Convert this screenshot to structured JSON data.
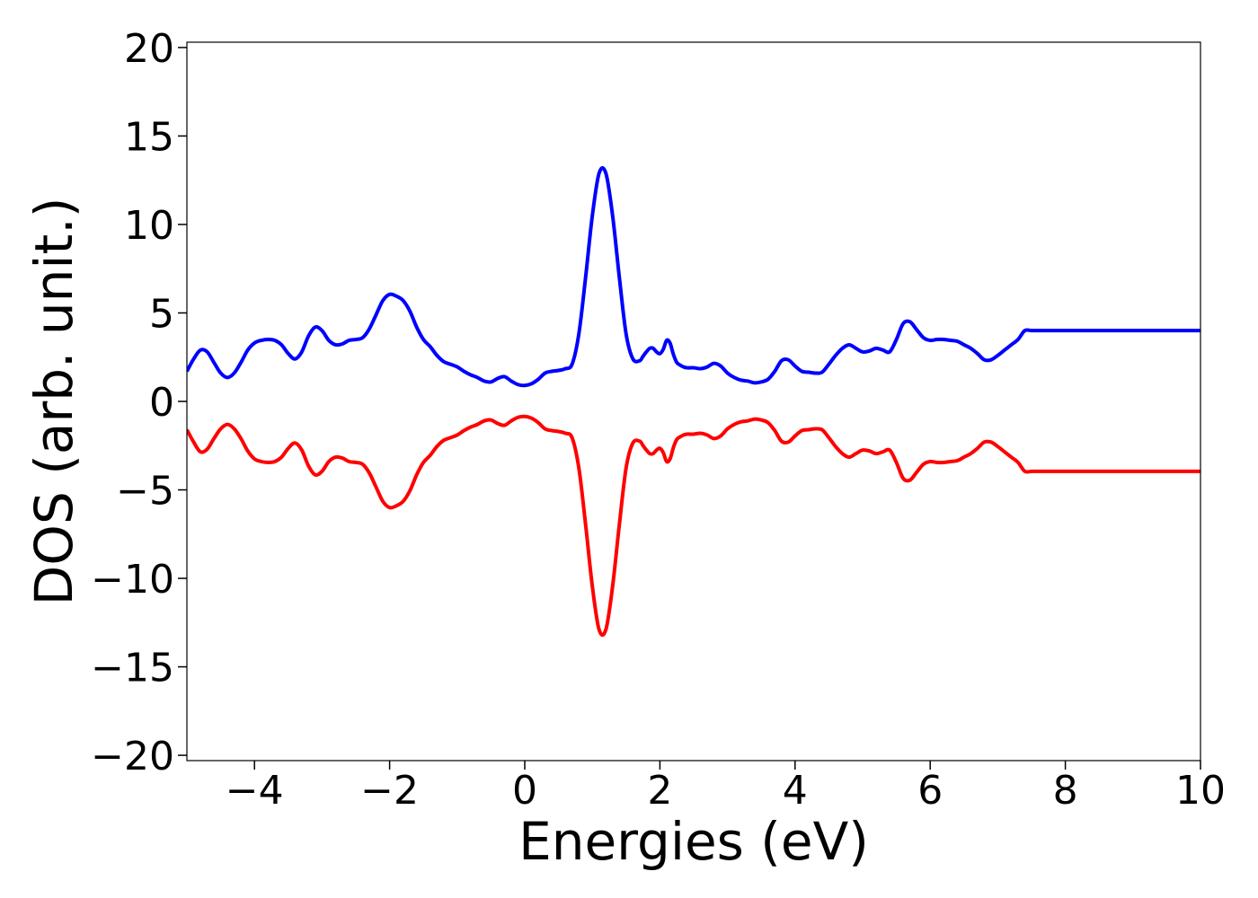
{
  "chart_data": {
    "type": "line",
    "title": "",
    "xlabel": "Energies (eV)",
    "ylabel": "DOS (arb. unit.)",
    "xlim": [
      -5,
      10
    ],
    "ylim": [
      -20.3,
      20.3
    ],
    "xticks": [
      -4,
      -2,
      0,
      2,
      4,
      6,
      8,
      10
    ],
    "xtick_labels": [
      "−4",
      "−2",
      "0",
      "2",
      "4",
      "6",
      "8",
      "10"
    ],
    "yticks": [
      20,
      15,
      10,
      5,
      0,
      -5,
      -10,
      -15,
      -20
    ],
    "ytick_labels": [
      "20",
      "15",
      "10",
      "5",
      "0",
      "−5",
      "−10",
      "−15",
      "−20"
    ],
    "grid": false,
    "legend": "none",
    "series": [
      {
        "color": "#0000ff",
        "x": [
          -5.0,
          -4.9,
          -4.8,
          -4.7,
          -4.6,
          -4.5,
          -4.4,
          -4.3,
          -4.2,
          -4.1,
          -4.0,
          -3.9,
          -3.8,
          -3.7,
          -3.6,
          -3.5,
          -3.4,
          -3.3,
          -3.2,
          -3.1,
          -3.0,
          -2.9,
          -2.8,
          -2.7,
          -2.6,
          -2.5,
          -2.4,
          -2.3,
          -2.2,
          -2.1,
          -2.0,
          -1.9,
          -1.8,
          -1.7,
          -1.6,
          -1.5,
          -1.4,
          -1.3,
          -1.2,
          -1.1,
          -1.0,
          -0.9,
          -0.8,
          -0.7,
          -0.6,
          -0.5,
          -0.4,
          -0.3,
          -0.2,
          -0.1,
          0.0,
          0.1,
          0.2,
          0.3,
          0.4,
          0.5,
          0.6,
          0.7,
          0.8,
          0.9,
          1.0,
          1.1,
          1.2,
          1.3,
          1.4,
          1.5,
          1.6,
          1.7,
          1.75,
          1.8,
          1.85,
          1.9,
          1.95,
          2.0,
          2.05,
          2.1,
          2.15,
          2.2,
          2.25,
          2.3,
          2.35,
          2.4,
          2.5,
          2.6,
          2.7,
          2.8,
          2.9,
          3.0,
          3.1,
          3.2,
          3.3,
          3.4,
          3.5,
          3.6,
          3.7,
          3.8,
          3.9,
          4.0,
          4.1,
          4.2,
          4.3,
          4.4,
          4.5,
          4.6,
          4.7,
          4.8,
          4.9,
          5.0,
          5.1,
          5.2,
          5.3,
          5.4,
          5.5,
          5.6,
          5.7,
          5.8,
          5.9,
          6.0,
          6.1,
          6.2,
          6.3,
          6.4,
          6.5,
          6.6,
          6.7,
          6.8,
          6.9,
          7.0,
          7.1,
          7.2,
          7.3,
          7.4,
          7.5,
          7.6,
          7.7,
          7.8,
          7.9,
          8.0,
          8.1,
          8.2,
          8.3,
          8.4,
          8.5,
          8.6,
          8.7,
          8.8,
          8.9,
          9.0,
          9.1,
          9.2,
          9.3,
          9.4,
          9.5,
          9.6,
          9.7,
          9.8,
          9.9,
          10.0
        ],
        "y": [
          1.7,
          2.4,
          2.9,
          2.8,
          2.2,
          1.6,
          1.35,
          1.6,
          2.2,
          2.9,
          3.3,
          3.45,
          3.5,
          3.45,
          3.2,
          2.7,
          2.4,
          2.8,
          3.7,
          4.2,
          4.0,
          3.45,
          3.2,
          3.25,
          3.45,
          3.5,
          3.6,
          4.1,
          4.9,
          5.7,
          6.05,
          5.95,
          5.7,
          5.1,
          4.2,
          3.5,
          3.1,
          2.6,
          2.25,
          2.1,
          1.95,
          1.7,
          1.5,
          1.35,
          1.15,
          1.1,
          1.3,
          1.4,
          1.15,
          0.95,
          0.9,
          1.0,
          1.25,
          1.6,
          1.7,
          1.75,
          1.85,
          2.1,
          3.8,
          7.0,
          10.5,
          12.9,
          12.9,
          10.5,
          7.0,
          3.8,
          2.4,
          2.3,
          2.55,
          2.8,
          3.0,
          3.0,
          2.8,
          2.7,
          2.95,
          3.45,
          3.3,
          2.65,
          2.2,
          2.05,
          1.95,
          1.9,
          1.9,
          1.85,
          1.95,
          2.15,
          2.0,
          1.6,
          1.35,
          1.2,
          1.15,
          1.05,
          1.1,
          1.25,
          1.7,
          2.3,
          2.35,
          2.0,
          1.7,
          1.65,
          1.6,
          1.65,
          2.1,
          2.6,
          3.0,
          3.2,
          3.0,
          2.8,
          2.85,
          3.0,
          2.9,
          2.8,
          3.5,
          4.4,
          4.5,
          4.05,
          3.6,
          3.45,
          3.5,
          3.5,
          3.45,
          3.4,
          3.2,
          3.0,
          2.7,
          2.35,
          2.35,
          2.6,
          2.9,
          3.2,
          3.5,
          4.0,
          4.0,
          4.0,
          4.0,
          4.0,
          4.0,
          4.0,
          4.0,
          4.0,
          4.0,
          4.0,
          4.0,
          4.0,
          4.0,
          4.0,
          4.0,
          4.0,
          4.0,
          4.0,
          4.0,
          4.0,
          4.0,
          4.0,
          4.0,
          4.0,
          4.0,
          4.0
        ]
      },
      {
        "color": "#ff0000",
        "x": [
          -5.0,
          -4.9,
          -4.8,
          -4.7,
          -4.6,
          -4.5,
          -4.4,
          -4.3,
          -4.2,
          -4.1,
          -4.0,
          -3.9,
          -3.8,
          -3.7,
          -3.6,
          -3.5,
          -3.4,
          -3.3,
          -3.2,
          -3.1,
          -3.0,
          -2.9,
          -2.8,
          -2.7,
          -2.6,
          -2.5,
          -2.4,
          -2.3,
          -2.2,
          -2.1,
          -2.0,
          -1.9,
          -1.8,
          -1.7,
          -1.6,
          -1.5,
          -1.4,
          -1.3,
          -1.2,
          -1.1,
          -1.0,
          -0.9,
          -0.8,
          -0.7,
          -0.6,
          -0.5,
          -0.4,
          -0.3,
          -0.2,
          -0.1,
          0.0,
          0.1,
          0.2,
          0.3,
          0.4,
          0.5,
          0.6,
          0.7,
          0.8,
          0.9,
          1.0,
          1.1,
          1.2,
          1.3,
          1.4,
          1.5,
          1.6,
          1.7,
          1.75,
          1.8,
          1.85,
          1.9,
          1.95,
          2.0,
          2.05,
          2.1,
          2.15,
          2.2,
          2.25,
          2.3,
          2.35,
          2.4,
          2.5,
          2.6,
          2.7,
          2.8,
          2.9,
          3.0,
          3.1,
          3.2,
          3.3,
          3.4,
          3.5,
          3.6,
          3.7,
          3.8,
          3.9,
          4.0,
          4.1,
          4.2,
          4.3,
          4.4,
          4.5,
          4.6,
          4.7,
          4.8,
          4.9,
          5.0,
          5.1,
          5.2,
          5.3,
          5.4,
          5.5,
          5.6,
          5.7,
          5.8,
          5.9,
          6.0,
          6.1,
          6.2,
          6.3,
          6.4,
          6.5,
          6.6,
          6.7,
          6.8,
          6.9,
          7.0,
          7.1,
          7.2,
          7.3,
          7.4,
          7.5,
          7.6,
          7.7,
          7.8,
          7.9,
          8.0,
          8.1,
          8.2,
          8.3,
          8.4,
          8.5,
          8.6,
          8.7,
          8.8,
          8.9,
          9.0,
          9.1,
          9.2,
          9.3,
          9.4,
          9.5,
          9.6,
          9.7,
          9.8,
          9.9,
          10.0
        ],
        "y": [
          -1.6,
          -2.3,
          -2.85,
          -2.7,
          -2.1,
          -1.55,
          -1.3,
          -1.55,
          -2.1,
          -2.8,
          -3.25,
          -3.4,
          -3.45,
          -3.4,
          -3.15,
          -2.65,
          -2.35,
          -2.75,
          -3.65,
          -4.15,
          -3.95,
          -3.4,
          -3.15,
          -3.2,
          -3.4,
          -3.45,
          -3.55,
          -4.05,
          -4.85,
          -5.65,
          -6.0,
          -5.9,
          -5.65,
          -5.05,
          -4.15,
          -3.45,
          -3.05,
          -2.55,
          -2.2,
          -2.05,
          -1.9,
          -1.65,
          -1.45,
          -1.3,
          -1.1,
          -1.05,
          -1.25,
          -1.35,
          -1.1,
          -0.9,
          -0.85,
          -0.95,
          -1.2,
          -1.55,
          -1.65,
          -1.7,
          -1.8,
          -2.05,
          -3.75,
          -6.95,
          -10.45,
          -12.9,
          -12.9,
          -10.45,
          -6.95,
          -3.75,
          -2.35,
          -2.25,
          -2.5,
          -2.75,
          -2.95,
          -2.95,
          -2.75,
          -2.65,
          -2.9,
          -3.4,
          -3.25,
          -2.6,
          -2.15,
          -2.0,
          -1.9,
          -1.85,
          -1.85,
          -1.8,
          -1.9,
          -2.1,
          -1.95,
          -1.55,
          -1.3,
          -1.15,
          -1.1,
          -1.0,
          -1.05,
          -1.2,
          -1.65,
          -2.25,
          -2.3,
          -1.95,
          -1.65,
          -1.6,
          -1.55,
          -1.6,
          -2.05,
          -2.55,
          -2.95,
          -3.15,
          -2.95,
          -2.75,
          -2.8,
          -2.95,
          -2.85,
          -2.75,
          -3.45,
          -4.35,
          -4.45,
          -4.0,
          -3.55,
          -3.4,
          -3.45,
          -3.45,
          -3.4,
          -3.35,
          -3.15,
          -2.95,
          -2.65,
          -2.3,
          -2.3,
          -2.55,
          -2.85,
          -3.15,
          -3.45,
          -3.95,
          -3.95,
          -3.95,
          -3.95,
          -3.95,
          -3.95,
          -3.95,
          -3.95,
          -3.95,
          -3.95,
          -3.95,
          -3.95,
          -3.95,
          -3.95,
          -3.95,
          -3.95,
          -3.95,
          -3.95,
          -3.95,
          -3.95,
          -3.95,
          -3.95,
          -3.95,
          -3.95,
          -3.95,
          -3.95,
          -3.95
        ]
      }
    ]
  }
}
